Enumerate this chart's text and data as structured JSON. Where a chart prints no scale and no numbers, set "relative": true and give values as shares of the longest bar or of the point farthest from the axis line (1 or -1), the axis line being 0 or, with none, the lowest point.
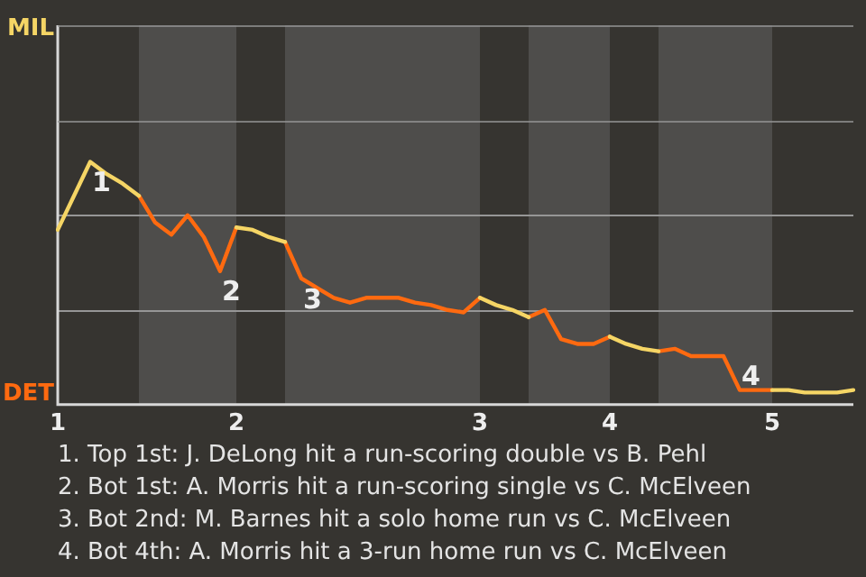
{
  "chart_data": {
    "type": "line",
    "relative": true,
    "categories": [
      "1",
      null,
      null,
      null,
      null,
      null,
      null,
      null,
      null,
      null,
      null,
      "2",
      null,
      null,
      null,
      null,
      null,
      null,
      null,
      null,
      null,
      null,
      null,
      null,
      null,
      null,
      "3",
      null,
      null,
      null,
      null,
      null,
      null,
      null,
      "4",
      null,
      null,
      null,
      null,
      null,
      null,
      null,
      null,
      null,
      "5",
      null,
      null,
      null,
      null,
      null
    ],
    "series": [
      {
        "color": "#f5d565",
        "values": [
          0.72,
          0.86,
          1,
          0.95,
          0.91,
          0.86,
          null,
          null,
          null,
          null,
          null,
          0.73,
          0.72,
          0.69,
          0.67,
          null,
          null,
          null,
          null,
          null,
          null,
          null,
          null,
          null,
          null,
          null,
          0.44,
          0.41,
          0.39,
          0.36,
          null,
          null,
          null,
          null,
          0.28,
          0.25,
          0.23,
          0.22,
          null,
          null,
          null,
          null,
          null,
          null,
          0.06,
          0.06,
          0.05,
          0.05,
          0.05,
          0.06
        ]
      },
      {
        "color": "#ff6a10",
        "values": [
          null,
          null,
          null,
          null,
          null,
          0.86,
          0.75,
          0.7,
          0.78,
          0.69,
          0.55,
          0.73,
          null,
          null,
          0.67,
          0.52,
          0.48,
          0.44,
          0.42,
          0.44,
          0.44,
          0.44,
          0.42,
          0.41,
          0.39,
          0.38,
          0.44,
          null,
          null,
          0.36,
          0.39,
          0.27,
          0.25,
          0.25,
          0.28,
          null,
          null,
          0.22,
          0.23,
          0.2,
          0.2,
          0.2,
          0.06,
          0.06,
          0.06,
          null,
          null,
          null,
          null,
          null
        ]
      }
    ],
    "annotations": [
      {
        "text": "1",
        "y": 1
      },
      {
        "text": "2",
        "y": 0.55
      },
      {
        "text": "3",
        "y": 0.52
      },
      {
        "text": "4",
        "y": 0.06
      },
      "MIL",
      "DET",
      "1. Top 1st: J. DeLong hit a run-scoring double vs B. Pehl",
      "2. Bot 1st: A. Morris hit a run-scoring single vs C. McElveen",
      "3. Bot 2nd: M. Barnes hit a solo home run vs C. McElveen",
      "4. Bot 4th: A. Morris hit a 3-run home run vs C. McElveen"
    ],
    "ref_lines": [
      {
        "axis": "y",
        "value": 0.78,
        "color": "#969696"
      },
      {
        "axis": "y",
        "value": 0.39,
        "color": "#969696"
      }
    ],
    "legend": false,
    "marker": "none",
    "line_style": "solid"
  }
}
